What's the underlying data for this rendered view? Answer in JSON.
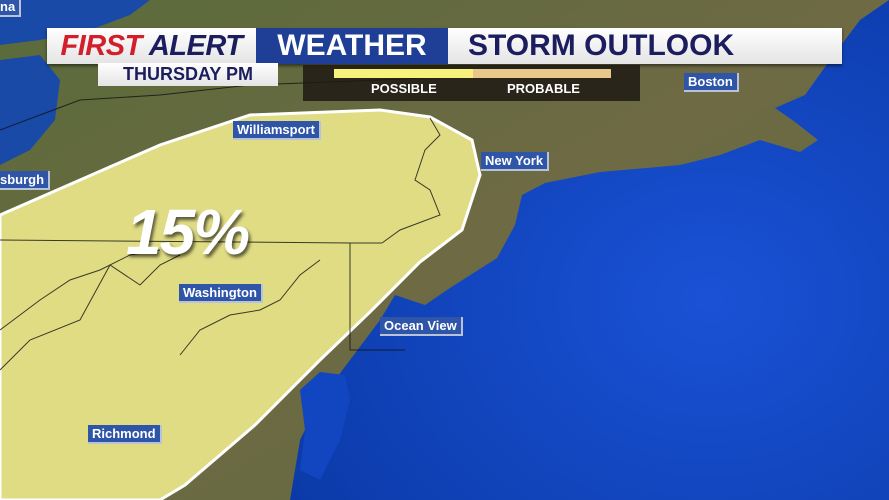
{
  "header": {
    "first": "FIRST",
    "alert": "ALERT",
    "weather": "WEATHER",
    "title": "STORM OUTLOOK",
    "subtitle": "THURSDAY PM"
  },
  "legend": {
    "items": [
      {
        "label": "POSSIBLE",
        "color": "#f6f27c"
      },
      {
        "label": "PROBABLE",
        "color": "#e8c78a"
      }
    ]
  },
  "risk": {
    "percent": "15%",
    "fill_color": "#e9e68a",
    "outline_color": "#ffffff"
  },
  "cities": [
    "na",
    "Boston",
    "Williamsport",
    "New York",
    "sburgh",
    "Washington",
    "Ocean View",
    "Richmond"
  ]
}
